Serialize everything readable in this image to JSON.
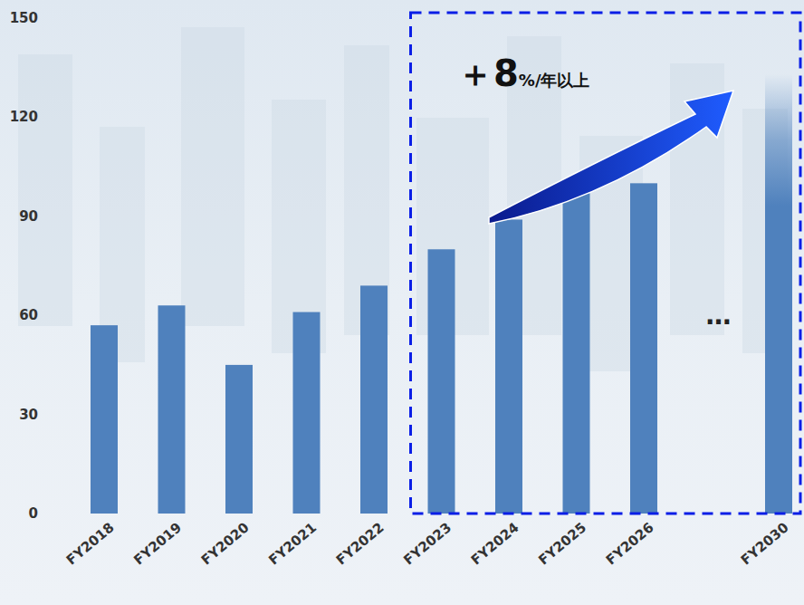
{
  "chart_data": {
    "type": "bar",
    "categories": [
      "FY2018",
      "FY2019",
      "FY2020",
      "FY2021",
      "FY2022",
      "FY2023",
      "FY2024",
      "FY2025",
      "FY2026",
      null,
      "FY2030"
    ],
    "values": [
      57,
      63,
      45,
      61,
      69,
      80,
      89,
      97,
      100,
      null,
      133
    ],
    "color": "#4f81bd",
    "ylim": [
      0,
      150
    ],
    "yticks": [
      0,
      30,
      60,
      90,
      120,
      150
    ],
    "grid": false,
    "annotations": [
      {
        "text": [
          "＋8",
          "%/年以上"
        ]
      },
      {
        "text": "…"
      }
    ]
  }
}
